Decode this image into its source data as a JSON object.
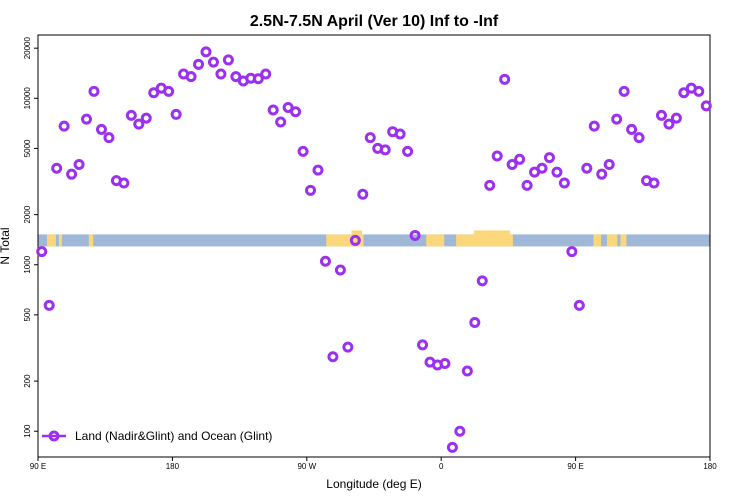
{
  "chart_data": {
    "type": "scatter",
    "title": "2.5N-7.5N April (Ver 10)   Inf to -Inf",
    "xlabel": "Longitude (deg E)",
    "ylabel": "N Total",
    "x_ticks": [
      {
        "value": 0,
        "label": "90 E"
      },
      {
        "value": 90,
        "label": "180"
      },
      {
        "value": 180,
        "label": "90 W"
      },
      {
        "value": 270,
        "label": "0"
      },
      {
        "value": 360,
        "label": "90 E"
      },
      {
        "value": 450,
        "label": "180"
      }
    ],
    "y_ticks": [
      100,
      200,
      500,
      1000,
      2000,
      5000,
      10000,
      20000
    ],
    "xlim": [
      0,
      450
    ],
    "ylim": [
      70,
      24000
    ],
    "y_scale": "log",
    "legend_position": "bottom-left",
    "colors": {
      "series": "#9b30f0",
      "ocean_band": "#a0b8d8",
      "land_band": "#fad77a"
    },
    "band_level": 1400,
    "land_segments": [
      [
        6,
        12
      ],
      [
        14,
        16
      ],
      [
        34,
        37
      ],
      [
        193,
        218
      ],
      [
        260,
        272
      ],
      [
        280,
        318
      ],
      [
        372,
        377
      ],
      [
        381,
        388
      ],
      [
        390,
        394
      ]
    ],
    "series": [
      {
        "name": "Land (Nadir&Glint) and Ocean (Glint)",
        "x": [
          2.5,
          7.5,
          12.5,
          17.5,
          22.5,
          27.5,
          32.5,
          37.5,
          42.5,
          47.5,
          52.5,
          57.5,
          62.5,
          67.5,
          72.5,
          77.5,
          82.5,
          87.5,
          92.5,
          97.5,
          102.5,
          107.5,
          112.5,
          117.5,
          122.5,
          127.5,
          132.5,
          137.5,
          142.5,
          147.5,
          152.5,
          157.5,
          162.5,
          167.5,
          172.5,
          177.5,
          182.5,
          187.5,
          192.5,
          197.5,
          202.5,
          207.5,
          212.5,
          217.5,
          222.5,
          227.5,
          232.5,
          237.5,
          242.5,
          247.5,
          252.5,
          257.5,
          262.5,
          267.5,
          272.5,
          277.5,
          282.5,
          287.5,
          292.5,
          297.5,
          302.5,
          307.5,
          312.5,
          317.5,
          322.5,
          327.5,
          332.5,
          337.5,
          342.5,
          347.5,
          352.5,
          357.5,
          362.5,
          367.5,
          372.5,
          377.5,
          382.5,
          387.5,
          392.5,
          397.5,
          402.5,
          407.5,
          412.5,
          417.5,
          422.5,
          427.5,
          432.5,
          437.5,
          442.5,
          447.5
        ],
        "y": [
          1200,
          570,
          3800,
          6800,
          3500,
          4000,
          7500,
          11000,
          6500,
          5800,
          3200,
          3100,
          7900,
          7000,
          7600,
          10800,
          11500,
          11000,
          8000,
          14000,
          13500,
          16000,
          19000,
          16500,
          14000,
          17000,
          13500,
          12700,
          13200,
          13100,
          14000,
          8500,
          7200,
          8800,
          8300,
          4800,
          2800,
          3700,
          1050,
          280,
          930,
          320,
          1400,
          2650,
          5800,
          5000,
          4900,
          6300,
          6100,
          4800,
          1500,
          330,
          260,
          250,
          255,
          80,
          100,
          230,
          450,
          800,
          3000,
          4500,
          13000,
          4000,
          4300,
          3000,
          3600,
          3800,
          4400,
          3600,
          3100,
          1200,
          570,
          3800,
          6800,
          3500,
          4000,
          7500,
          11000,
          6500,
          5800,
          3200,
          3100,
          7900,
          7000,
          7600,
          10800,
          11500,
          11000,
          9000
        ]
      }
    ]
  }
}
